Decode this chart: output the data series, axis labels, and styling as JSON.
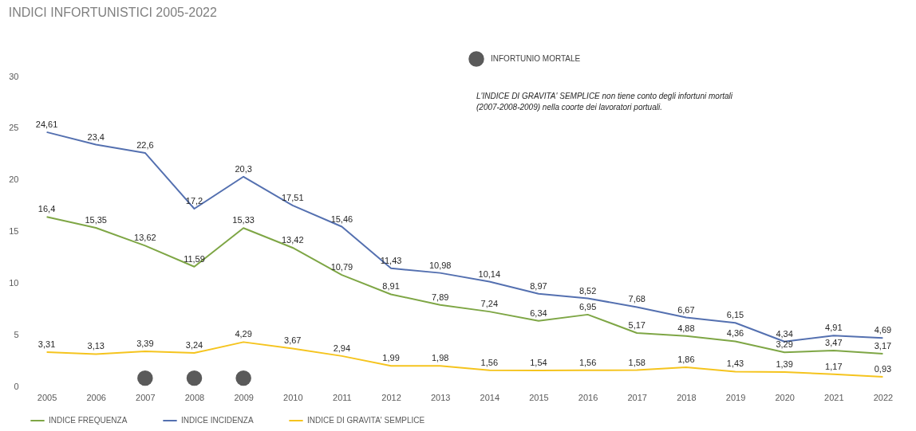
{
  "chart_data": {
    "type": "line",
    "title": "INDICI INFORTUNISTICI 2005-2022",
    "categories": [
      "2005",
      "2006",
      "2007",
      "2008",
      "2009",
      "2010",
      "2011",
      "2012",
      "2013",
      "2014",
      "2015",
      "2016",
      "2017",
      "2018",
      "2019",
      "2020",
      "2021",
      "2022"
    ],
    "series": [
      {
        "name": "INDICE FREQUENZA",
        "color": "#7ea645",
        "values": [
          16.4,
          15.35,
          13.62,
          11.59,
          15.33,
          13.42,
          10.79,
          8.91,
          7.89,
          7.24,
          6.34,
          6.95,
          5.17,
          4.88,
          4.36,
          3.29,
          3.47,
          3.17
        ],
        "value_labels": [
          "16,4",
          "15,35",
          "13,62",
          "11,59",
          "15,33",
          "13,42",
          "10,79",
          "8,91",
          "7,89",
          "7,24",
          "6,34",
          "6,95",
          "5,17",
          "4,88",
          "4,36",
          "3,29",
          "3,47",
          "3,17"
        ]
      },
      {
        "name": "INDICE INCIDENZA",
        "color": "#5470b0",
        "values": [
          24.61,
          23.4,
          22.6,
          17.2,
          20.3,
          17.51,
          15.46,
          11.43,
          10.98,
          10.14,
          8.97,
          8.52,
          7.68,
          6.67,
          6.15,
          4.34,
          4.91,
          4.69
        ],
        "value_labels": [
          "24,61",
          "23,4",
          "22,6",
          "17,2",
          "20,3",
          "17,51",
          "15,46",
          "11,43",
          "10,98",
          "10,14",
          "8,97",
          "8,52",
          "7,68",
          "6,67",
          "6,15",
          "4,34",
          "4,91",
          "4,69"
        ]
      },
      {
        "name": "INDICE DI GRAVITA' SEMPLICE",
        "color": "#f5c41e",
        "values": [
          3.31,
          3.13,
          3.39,
          3.24,
          4.29,
          3.67,
          2.94,
          1.99,
          1.98,
          1.56,
          1.54,
          1.56,
          1.58,
          1.86,
          1.43,
          1.39,
          1.17,
          0.93
        ],
        "value_labels": [
          "3,31",
          "3,13",
          "3,39",
          "3,24",
          "4,29",
          "3,67",
          "2,94",
          "1,99",
          "1,98",
          "1,56",
          "1,54",
          "1,56",
          "1,58",
          "1,86",
          "1,43",
          "1,39",
          "1,17",
          "0,93"
        ]
      },
      {
        "name": "INFORTUNIO MORTALE",
        "type": "scatter",
        "marker": "circle",
        "color": "#5a5a5a",
        "values": [
          null,
          null,
          0.8,
          0.8,
          0.8,
          null,
          null,
          null,
          null,
          null,
          null,
          null,
          null,
          null,
          null,
          null,
          null,
          null
        ]
      }
    ],
    "ylim": [
      0,
      30
    ],
    "yticks": [
      0,
      5,
      10,
      15,
      20,
      25,
      30
    ],
    "grid": false,
    "legend": "bottom",
    "marker": "none",
    "line_style": "solid",
    "annotations": [
      "L'INDICE DI GRAVITA' SEMPLICE non tiene conto degli infortuni mortali (2007-2008-2009) nella coorte dei lavoratori portuali."
    ]
  }
}
